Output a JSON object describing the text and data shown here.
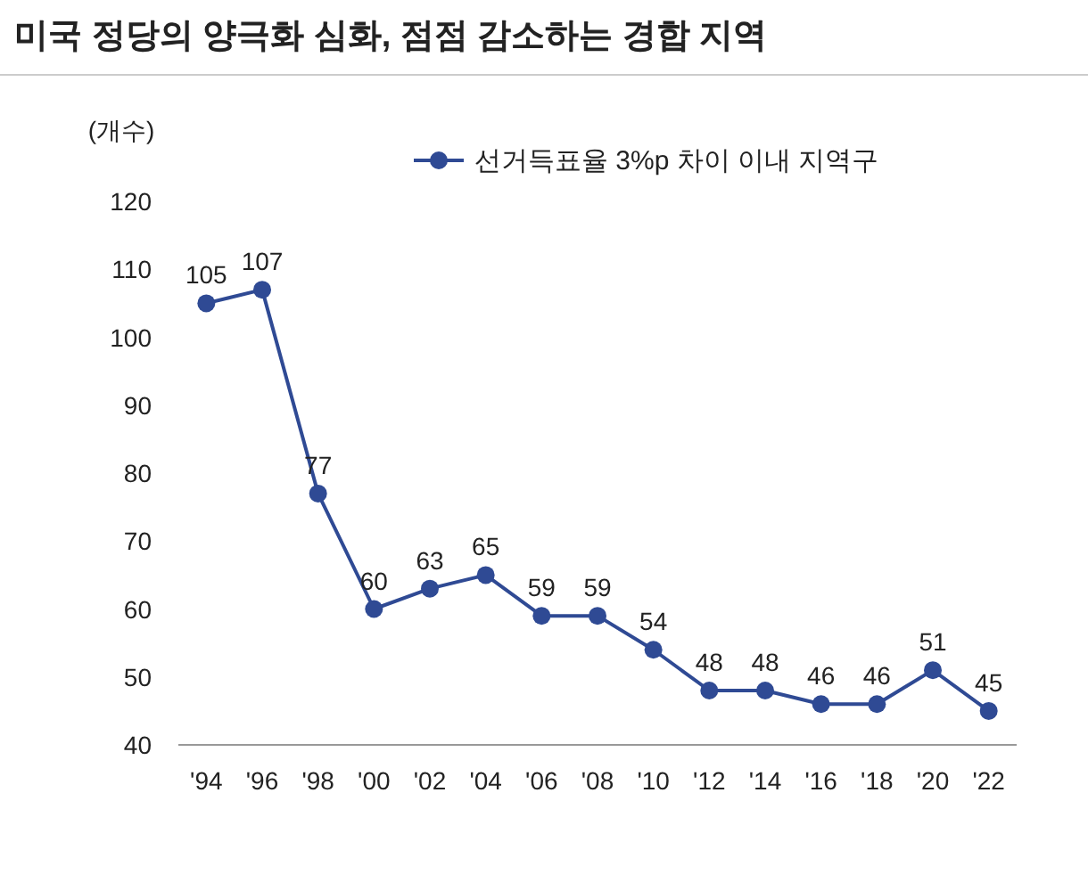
{
  "chart_data": {
    "type": "line",
    "title": "미국 정당의 양극화 심화, 점점 감소하는 경합 지역",
    "ylabel": "(개수)",
    "categories": [
      "'94",
      "'96",
      "'98",
      "'00",
      "'02",
      "'04",
      "'06",
      "'08",
      "'10",
      "'12",
      "'14",
      "'16",
      "'18",
      "'20",
      "'22"
    ],
    "series": [
      {
        "name": "선거득표율 3%p 차이 이내 지역구",
        "color": "#2f4a94",
        "values": [
          105,
          107,
          77,
          60,
          63,
          65,
          59,
          59,
          54,
          48,
          48,
          46,
          46,
          51,
          45
        ]
      }
    ],
    "ylim": [
      40,
      120
    ],
    "yticks": [
      40,
      50,
      60,
      70,
      80,
      90,
      100,
      110,
      120
    ],
    "grid": false,
    "legend": "top",
    "marker": "circle",
    "line_style": "solid",
    "data_labels": true
  }
}
